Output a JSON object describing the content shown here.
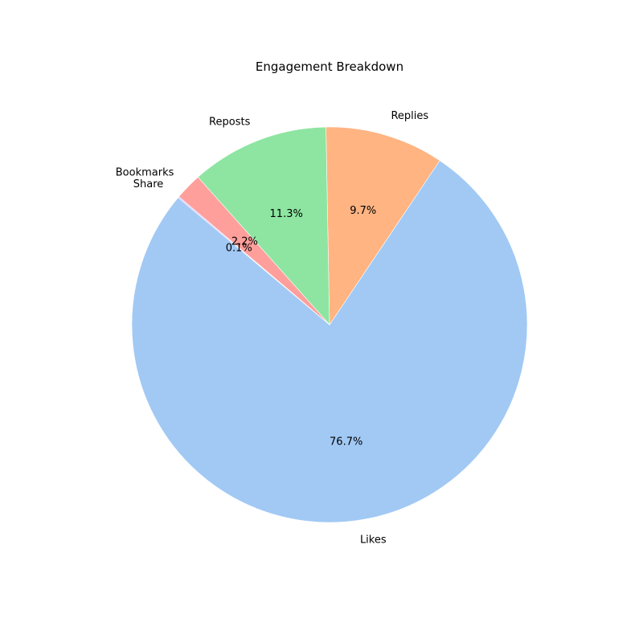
{
  "chart_data": {
    "type": "pie",
    "title": "Engagement Breakdown",
    "start_angle_deg": 140,
    "direction": "counterclockwise",
    "slices": [
      {
        "label": "Likes",
        "value": 76.7,
        "pct_text": "76.7%",
        "color": "#a1c9f4"
      },
      {
        "label": "Replies",
        "value": 9.7,
        "pct_text": "9.7%",
        "color": "#ffb482"
      },
      {
        "label": "Reposts",
        "value": 11.3,
        "pct_text": "11.3%",
        "color": "#8de5a1"
      },
      {
        "label": "Bookmarks",
        "value": 2.2,
        "pct_text": "2.2%",
        "color": "#ff9f9b"
      },
      {
        "label": "Share",
        "value": 0.1,
        "pct_text": "0.1%",
        "color": "#d0bbff"
      }
    ]
  }
}
